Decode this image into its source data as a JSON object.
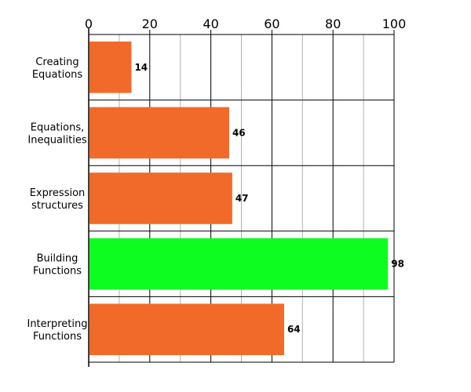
{
  "chart_data": {
    "type": "bar",
    "orientation": "horizontal",
    "categories": [
      [
        "Creating",
        "Equations"
      ],
      [
        "Equations,",
        "Inequalities"
      ],
      [
        "Expression",
        "structures"
      ],
      [
        "Building",
        "Functions"
      ],
      [
        "Interpreting",
        "Functions"
      ]
    ],
    "values": [
      14,
      46,
      47,
      98,
      64
    ],
    "bar_colors": [
      "#f26a2a",
      "#f26a2a",
      "#f26a2a",
      "#0dfd20",
      "#f26a2a"
    ],
    "xlim": [
      0,
      100
    ],
    "x_ticks": [
      0,
      20,
      40,
      60,
      80,
      100
    ],
    "x_axis_position": "top",
    "grid": true,
    "title": "",
    "xlabel": "",
    "ylabel": ""
  }
}
